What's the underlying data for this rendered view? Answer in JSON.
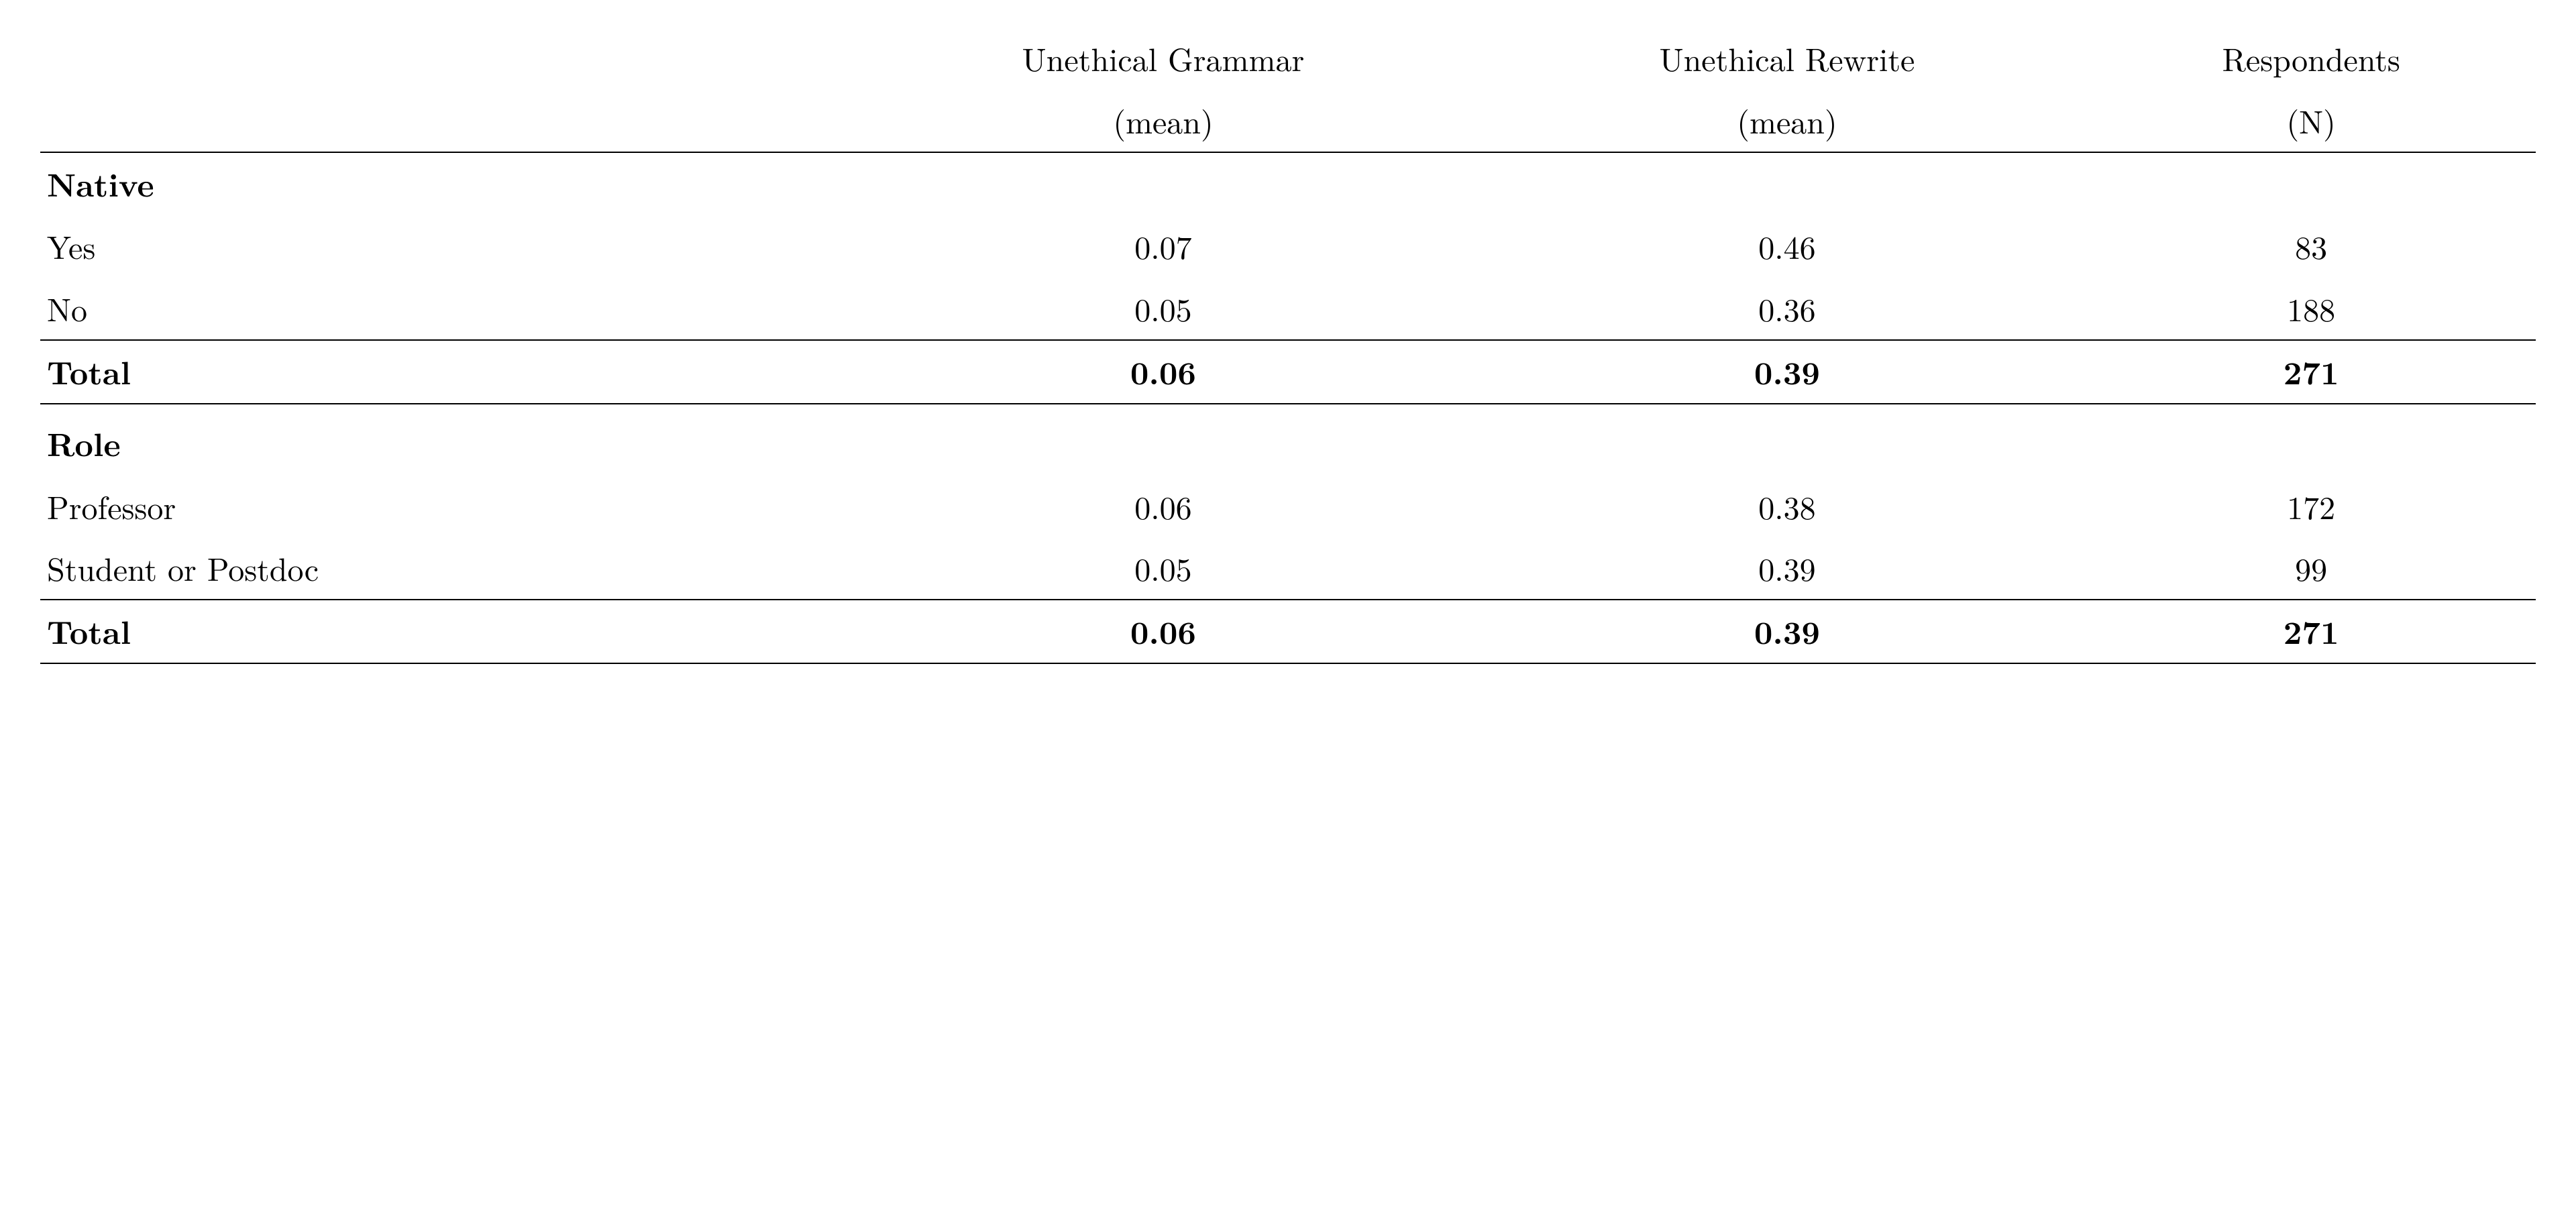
{
  "table": {
    "type": "table",
    "background_color": "#ffffff",
    "text_color": "#000000",
    "rule_color": "#000000",
    "font_family": "Computer Modern / Latin Modern (serif)",
    "base_fontsize_pt": 36,
    "columns": [
      {
        "key": "label",
        "header_top": "",
        "header_sub": "",
        "align": "left",
        "width_pct": 32
      },
      {
        "key": "grammar",
        "header_top": "Unethical Grammar",
        "header_sub": "(mean)",
        "align": "center",
        "width_pct": 26
      },
      {
        "key": "rewrite",
        "header_top": "Unethical Rewrite",
        "header_sub": "(mean)",
        "align": "center",
        "width_pct": 24
      },
      {
        "key": "n",
        "header_top": "Respondents",
        "header_sub": "(N)",
        "align": "center",
        "width_pct": 18
      }
    ],
    "sections": [
      {
        "title": "Native",
        "rows": [
          {
            "label": "Yes",
            "grammar": "0.07",
            "rewrite": "0.46",
            "n": "83"
          },
          {
            "label": "No",
            "grammar": "0.05",
            "rewrite": "0.36",
            "n": "188"
          }
        ],
        "total": {
          "label": "Total",
          "grammar": "0.06",
          "rewrite": "0.39",
          "n": "271"
        }
      },
      {
        "title": "Role",
        "rows": [
          {
            "label": "Professor",
            "grammar": "0.06",
            "rewrite": "0.38",
            "n": "172"
          },
          {
            "label": "Student or Postdoc",
            "grammar": "0.05",
            "rewrite": "0.39",
            "n": "99"
          }
        ],
        "total": {
          "label": "Total",
          "grammar": "0.06",
          "rewrite": "0.39",
          "n": "271"
        }
      }
    ]
  }
}
